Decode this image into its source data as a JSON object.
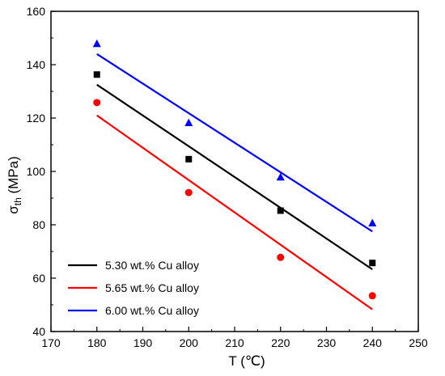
{
  "chart_data": {
    "type": "scatter",
    "xlabel": "T (℃)",
    "ylabel_main": "σ",
    "ylabel_sub": "th",
    "ylabel_unit": " (MPa)",
    "xlim": [
      170,
      250
    ],
    "ylim": [
      40,
      160
    ],
    "xticks": [
      170,
      180,
      190,
      200,
      210,
      220,
      230,
      240,
      250
    ],
    "yticks": [
      40,
      60,
      80,
      100,
      120,
      140,
      160
    ],
    "grid": false,
    "legend_position": "bottom-left",
    "series": [
      {
        "name": "5.30 wt.% Cu alloy",
        "color": "#000000",
        "marker": "square",
        "x": [
          180,
          200,
          220,
          240
        ],
        "y": [
          136.3,
          104.6,
          85.3,
          65.7
        ],
        "fit": {
          "x": [
            180,
            240
          ],
          "y": [
            132.5,
            63.3
          ]
        }
      },
      {
        "name": "5.65 wt.% Cu alloy",
        "color": "#ff0000",
        "marker": "circle",
        "x": [
          180,
          200,
          220,
          240
        ],
        "y": [
          125.8,
          92.1,
          67.8,
          53.4
        ],
        "fit": {
          "x": [
            180,
            240
          ],
          "y": [
            121.0,
            48.3
          ]
        }
      },
      {
        "name": "6.00 wt.% Cu alloy",
        "color": "#0000ff",
        "marker": "triangle",
        "x": [
          180,
          200,
          220,
          240
        ],
        "y": [
          147.8,
          118.2,
          97.8,
          80.6
        ],
        "fit": {
          "x": [
            180,
            240
          ],
          "y": [
            144.0,
            77.5
          ]
        }
      }
    ]
  }
}
